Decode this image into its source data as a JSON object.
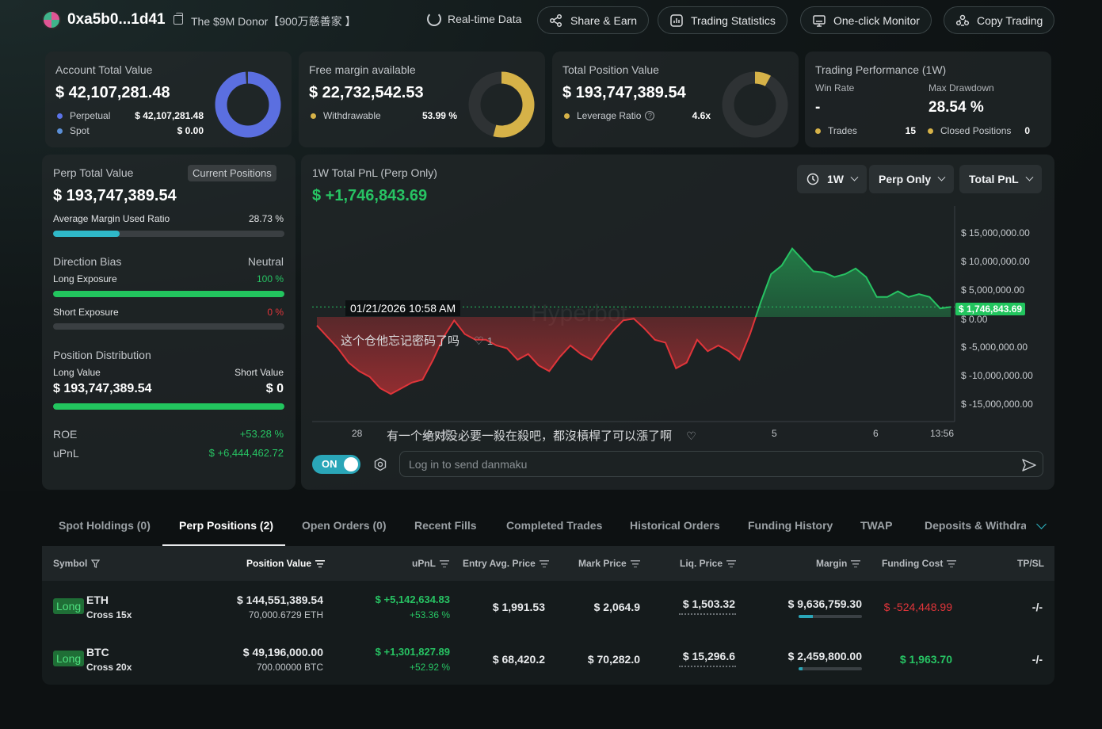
{
  "header": {
    "address": "0xa5b0...1d41",
    "donor_label": "The $9M Donor【900万慈善家 】",
    "realtime_label": "Real-time Data",
    "buttons": [
      "Share & Earn",
      "Trading Statistics",
      "One-click Monitor",
      "Copy Trading"
    ]
  },
  "summary": {
    "account": {
      "title": "Account Total Value",
      "value": "$ 42,107,281.48",
      "items": [
        {
          "label": "Perpetual",
          "value": "$ 42,107,281.48",
          "color": "#5b73e8"
        },
        {
          "label": "Spot",
          "value": "$ 0.00",
          "color": "#5b8fd6"
        }
      ],
      "donut_fraction": 1.0,
      "donut_color": "#5b6fe0"
    },
    "margin": {
      "title": "Free margin available",
      "value": "$ 22,732,542.53",
      "item_label": "Withdrawable",
      "item_value": "53.99 %",
      "donut_fraction": 0.5399,
      "donut_color": "#d6b248"
    },
    "position": {
      "title": "Total Position Value",
      "value": "$ 193,747,389.54",
      "item_label": "Leverage Ratio",
      "item_value": "4.6x",
      "donut_fraction": 0.08,
      "donut_color": "#d6b248"
    },
    "performance": {
      "title": "Trading Performance (1W)",
      "win_rate_label": "Win Rate",
      "win_rate_value": "-",
      "max_dd_label": "Max Drawdown",
      "max_dd_value": "28.54 %",
      "trades_label": "Trades",
      "trades_value": "15",
      "closed_label": "Closed Positions",
      "closed_value": "0"
    }
  },
  "perp_panel": {
    "title": "Perp Total Value",
    "badge": "Current Positions",
    "value": "$ 193,747,389.54",
    "avg_margin_label": "Average Margin Used Ratio",
    "avg_margin_value": "28.73 %",
    "avg_margin_fraction": 0.2873,
    "direction_label": "Direction Bias",
    "direction_value": "Neutral",
    "long_exposure_label": "Long Exposure",
    "long_exposure_value": "100 %",
    "long_exposure_fraction": 1.0,
    "short_exposure_label": "Short Exposure",
    "short_exposure_value": "0 %",
    "short_exposure_fraction": 0.0,
    "distribution_label": "Position Distribution",
    "long_value_label": "Long Value",
    "short_value_label": "Short Value",
    "long_value": "$ 193,747,389.54",
    "short_value": "$ 0",
    "long_fraction": 1.0,
    "roe_label": "ROE",
    "roe_value": "+53.28 %",
    "upnl_label": "uPnL",
    "upnl_value": "$ +6,444,462.72"
  },
  "chart": {
    "title": "1W Total PnL (Perp Only)",
    "value": "$ +1,746,843.69",
    "controls": [
      "1W",
      "Perp Only",
      "Total PnL"
    ],
    "tooltip": "01/21/2026 10:58 AM",
    "current_label": "$ 1,746,843.69",
    "watermark": "Hyperbot",
    "danmaku": [
      {
        "text": "这个仓他忘记密码了吗",
        "likes": "1"
      },
      {
        "text": "有一个绝对没必要一殺在殺吧，都沒槓桿了可以漲了啊",
        "overlap": "ert 拔"
      }
    ],
    "toggle_label": "ON",
    "input_placeholder": "Log in to send danmaku"
  },
  "chart_data": {
    "type": "area",
    "title": "1W Total PnL (Perp Only)",
    "y_ticks": [
      "$ 15,000,000.00",
      "$ 10,000,000.00",
      "$ 5,000,000.00",
      "$ 0.00",
      "$ -5,000,000.00",
      "$ -10,000,000.00",
      "$ -15,000,000.00"
    ],
    "x_ticks": [
      "28",
      "5",
      "6",
      "13:56"
    ],
    "ylim": [
      -18000000,
      18000000
    ],
    "current_value": 1746843.69,
    "values": [
      -1500000,
      -3500000,
      -5500000,
      -8000000,
      -9500000,
      -10500000,
      -12500000,
      -13500000,
      -12500000,
      -11500000,
      -11000000,
      -7500000,
      -3500000,
      -600000,
      -3000000,
      -4000000,
      -4000000,
      -5000000,
      -5500000,
      -7500000,
      -6500000,
      -8500000,
      -9500000,
      -7000000,
      -5000000,
      -6500000,
      -7500000,
      -4800000,
      -2500000,
      -600000,
      -300000,
      -2000000,
      -4000000,
      -4500000,
      -9000000,
      -8000000,
      -4000000,
      -6000000,
      -5000000,
      -6000000,
      -7500000,
      -3000000,
      2500000,
      7500000,
      9000000,
      12000000,
      10000000,
      8000000,
      7800000,
      7000000,
      7500000,
      8500000,
      7000000,
      3500000,
      3500000,
      4500000,
      3500000,
      4000000,
      3500000,
      1500000,
      1746843.69
    ]
  },
  "tabs": [
    "Spot Holdings (0)",
    "Perp Positions (2)",
    "Open Orders (0)",
    "Recent Fills",
    "Completed Trades",
    "Historical Orders",
    "Funding History",
    "TWAP",
    "Deposits & Withdraw"
  ],
  "table": {
    "columns": [
      "Symbol",
      "Position Value",
      "uPnL",
      "Entry Avg. Price",
      "Mark Price",
      "Liq. Price",
      "Margin",
      "Funding Cost",
      "TP/SL"
    ],
    "rows": [
      {
        "side": "Long",
        "symbol": "ETH",
        "mode": "Cross 15x",
        "position_value": "$ 144,551,389.54",
        "position_size": "70,000.6729 ETH",
        "upnl": "$ +5,142,634.83",
        "upnl_pct": "+53.36 %",
        "entry": "$ 1,991.53",
        "mark": "$ 2,064.9",
        "liq": "$ 1,503.32",
        "margin": "$ 9,636,759.30",
        "margin_fraction": 0.22,
        "funding": "$ -524,448.99",
        "funding_sign": "neg",
        "tpsl": "-/-"
      },
      {
        "side": "Long",
        "symbol": "BTC",
        "mode": "Cross 20x",
        "position_value": "$ 49,196,000.00",
        "position_size": "700.00000 BTC",
        "upnl": "$ +1,301,827.89",
        "upnl_pct": "+52.92 %",
        "entry": "$ 68,420.2",
        "mark": "$ 70,282.0",
        "liq": "$ 15,296.6",
        "margin": "$ 2,459,800.00",
        "margin_fraction": 0.06,
        "funding": "$ 1,963.70",
        "funding_sign": "pos",
        "tpsl": "-/-"
      }
    ]
  }
}
